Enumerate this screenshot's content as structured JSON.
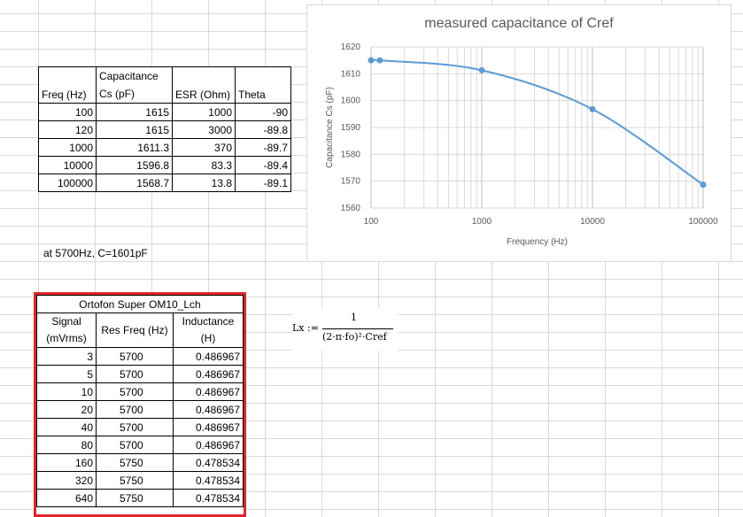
{
  "capacitance_table": {
    "headers": [
      "Freq (Hz)",
      "Capacitance\nCs (pF)",
      "ESR (Ohm)",
      "Theta"
    ],
    "header_cap_line1": "Capacitance",
    "header_cap_line2": "Cs (pF)",
    "rows": [
      [
        "100",
        "1615",
        "1000",
        "-90"
      ],
      [
        "120",
        "1615",
        "3000",
        "-89.8"
      ],
      [
        "1000",
        "1611.3",
        "370",
        "-89.7"
      ],
      [
        "10000",
        "1596.8",
        "83.3",
        "-89.4"
      ],
      [
        "100000",
        "1568.7",
        "13.8",
        "-89.1"
      ]
    ]
  },
  "note": "at 5700Hz,  C=1601pF",
  "cartridge_table": {
    "title": "Ortofon Super OM10_Lch",
    "col1_line1": "Signal",
    "col1_line2": "(mVrms)",
    "col2": "Res Freq (Hz)",
    "col3_line1": "Inductance",
    "col3_line2": "(H)",
    "rows": [
      [
        "3",
        "5700",
        "0.486967"
      ],
      [
        "5",
        "5700",
        "0.486967"
      ],
      [
        "10",
        "5700",
        "0.486967"
      ],
      [
        "20",
        "5700",
        "0.486967"
      ],
      [
        "40",
        "5700",
        "0.486967"
      ],
      [
        "80",
        "5700",
        "0.486967"
      ],
      [
        "160",
        "5750",
        "0.478534"
      ],
      [
        "320",
        "5750",
        "0.478534"
      ],
      [
        "640",
        "5750",
        "0.478534"
      ]
    ]
  },
  "formula": {
    "lhs": "Lx :=",
    "numerator": "1",
    "denominator": "(2·π·fo)²·Cref"
  },
  "chart_data": {
    "type": "line",
    "title": "measured capacitance of Cref",
    "xlabel": "Frequency (Hz)",
    "ylabel": "Capacitance Cs (pF)",
    "x_scale": "log",
    "xlim": [
      100,
      100000
    ],
    "ylim": [
      1560,
      1620
    ],
    "x_ticks": [
      "100",
      "1000",
      "10000",
      "100000"
    ],
    "y_ticks": [
      "1560",
      "1570",
      "1580",
      "1590",
      "1600",
      "1610",
      "1620"
    ],
    "series": [
      {
        "x": [
          100,
          120,
          1000,
          10000,
          100000
        ],
        "values": [
          1615,
          1615,
          1611.3,
          1596.8,
          1568.7
        ]
      }
    ],
    "grid": true,
    "color": "#5b9bd5"
  }
}
